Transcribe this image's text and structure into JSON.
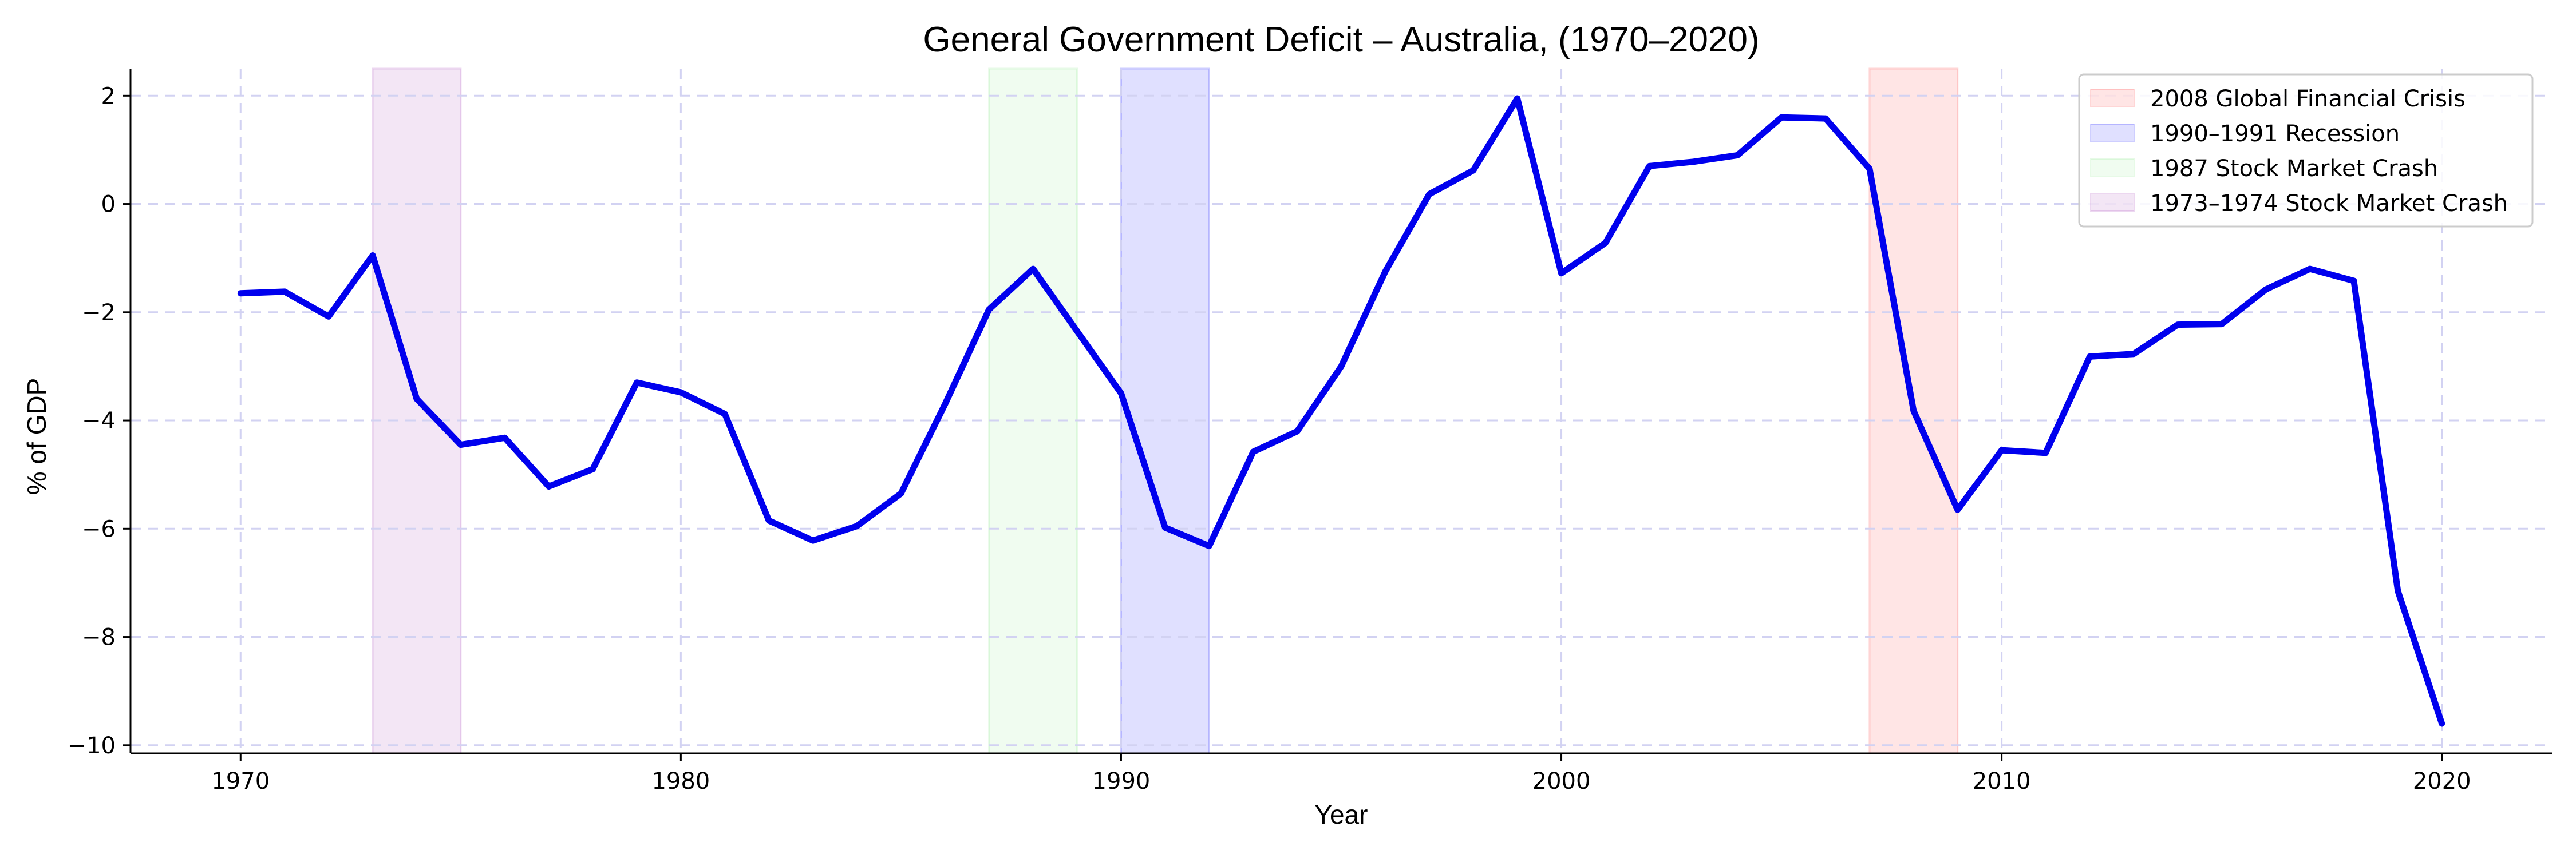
{
  "chart_data": {
    "type": "line",
    "title": "General Government Deficit – Australia, (1970–2020)",
    "xlabel": "Year",
    "ylabel": "% of GDP",
    "xlim": [
      1967.5,
      2022.5
    ],
    "ylim": [
      -10.15,
      2.5
    ],
    "xticks": [
      1970,
      1980,
      1990,
      2000,
      2010,
      2020
    ],
    "yticks": [
      2,
      0,
      -2,
      -4,
      -6,
      -8,
      -10
    ],
    "ytick_labels": [
      "2",
      "0",
      "−2",
      "−4",
      "−6",
      "−8",
      "−10"
    ],
    "grid": true,
    "legend_position": "top-right",
    "line_color": "#0000ee",
    "series": [
      {
        "x": [
          1970,
          1971,
          1972,
          1973,
          1974,
          1975,
          1976,
          1977,
          1978,
          1979,
          1980,
          1981,
          1982,
          1983,
          1984,
          1985,
          1986,
          1987,
          1988,
          1989,
          1990,
          1991,
          1992,
          1993,
          1994,
          1995,
          1996,
          1997,
          1998,
          1999,
          2000,
          2001,
          2002,
          2003,
          2004,
          2005,
          2006,
          2007,
          2008,
          2009,
          2010,
          2011,
          2012,
          2013,
          2014,
          2015,
          2016,
          2017,
          2018,
          2019,
          2020
        ],
        "values": [
          -1.65,
          -1.62,
          -2.08,
          -0.95,
          -3.6,
          -4.45,
          -4.32,
          -5.22,
          -4.9,
          -3.3,
          -3.48,
          -3.88,
          -5.85,
          -6.22,
          -5.95,
          -5.35,
          -3.7,
          -1.95,
          -1.2,
          -2.35,
          -3.5,
          -5.98,
          -6.32,
          -4.58,
          -4.2,
          -3.0,
          -1.25,
          0.18,
          0.62,
          1.95,
          -1.28,
          -0.72,
          0.7,
          0.78,
          0.9,
          1.6,
          1.58,
          0.65,
          -3.82,
          -5.65,
          -4.55,
          -4.6,
          -2.82,
          -2.77,
          -2.23,
          -2.22,
          -1.58,
          -1.2,
          -1.42,
          -7.15,
          -9.6
        ]
      }
    ],
    "shaded_regions": [
      {
        "name": "2008 Global Financial Crisis",
        "start": 2007,
        "end": 2009,
        "color": "#ff0000",
        "opacity": 0.1
      },
      {
        "name": "1990–1991 Recession",
        "start": 1990,
        "end": 1992,
        "color": "#0000ff",
        "opacity": 0.12
      },
      {
        "name": "1987 Stock Market Crash",
        "start": 1987,
        "end": 1989,
        "color": "#00cc00",
        "opacity": 0.06
      },
      {
        "name": "1973–1974 Stock Market Crash",
        "start": 1973,
        "end": 1975,
        "color": "#9b30b0",
        "opacity": 0.12
      }
    ]
  }
}
